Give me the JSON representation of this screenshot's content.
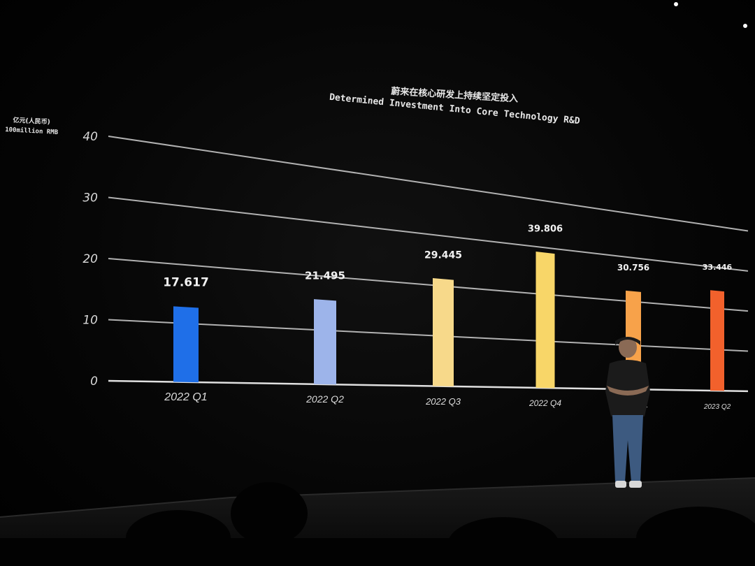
{
  "chart_data": {
    "type": "bar",
    "title_cn": "蔚来在核心研发上持续坚定投入",
    "title": "Determined Investment Into Core Technology R&D",
    "ylabel_cn": "亿元(人民币)",
    "ylabel": "100million RMB",
    "ylim": [
      0,
      40
    ],
    "yticks": [
      "0",
      "10",
      "20",
      "30",
      "40"
    ],
    "grid": true,
    "categories": [
      "2022 Q1",
      "2022 Q2",
      "2022 Q3",
      "2022 Q4",
      "2023 Q1",
      "2023 Q2"
    ],
    "values": [
      17.617,
      21.495,
      29.445,
      39.806,
      30.756,
      33.446
    ],
    "data_labels": [
      "17.617",
      "21.495",
      "29.445",
      "39.806",
      "30.756",
      "33.446"
    ],
    "colors": [
      "#1f6fe8",
      "#9db4ea",
      "#f7d98a",
      "#f8d668",
      "#f7a24a",
      "#f2612c"
    ]
  }
}
